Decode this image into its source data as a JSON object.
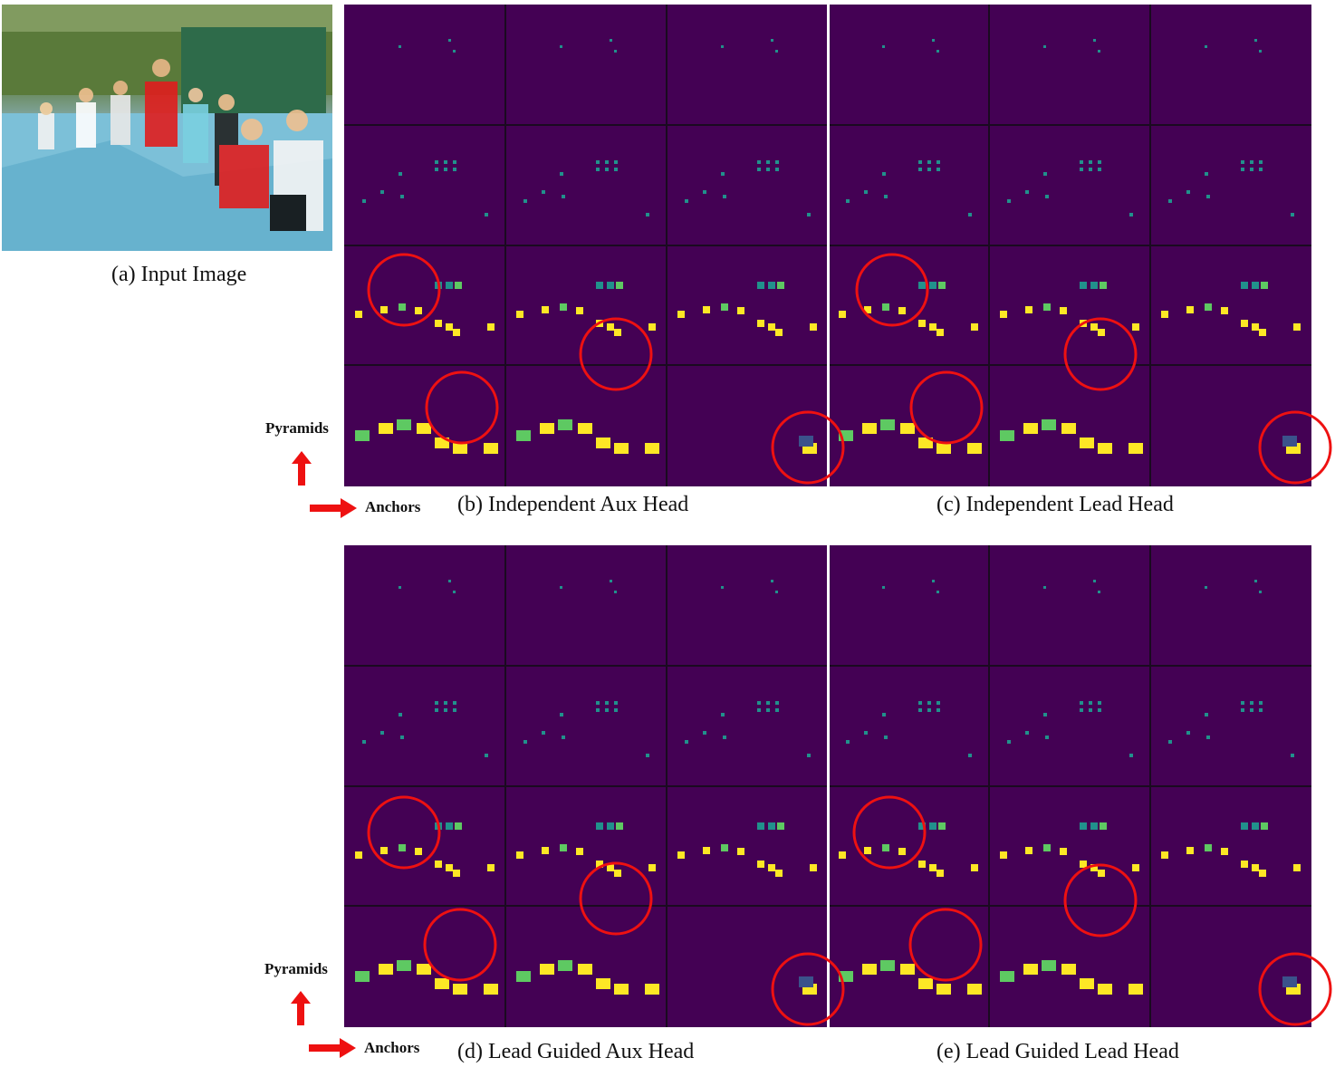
{
  "input_panel": {
    "caption": "(a) Input Image"
  },
  "axes": {
    "vertical_label": "Pyramids",
    "horizontal_label": "Anchors"
  },
  "panels": [
    {
      "caption_left": "(b) Independent Aux Head",
      "caption_right": "(c) Independent Lead Head"
    },
    {
      "caption_left": "(d) Lead Guided Aux Head",
      "caption_right": "(e) Lead Guided Lead Head"
    }
  ],
  "colors": {
    "background": "#440154",
    "low": "#3b528b",
    "mid": "#21918c",
    "high_mid": "#5ec962",
    "high": "#fde725",
    "highlight_circle": "#ee1111",
    "arrow": "#ee1111"
  }
}
